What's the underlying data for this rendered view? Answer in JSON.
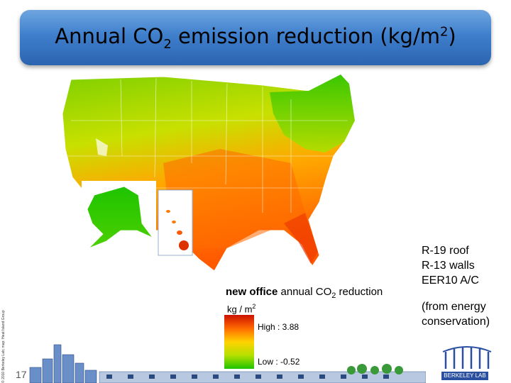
{
  "title": {
    "prefix": "Annual CO",
    "sub": "2",
    "middle": " emission reduction (kg/m",
    "sup": "2",
    "suffix": ")"
  },
  "side_notes": {
    "line1": "R-19 roof",
    "line2": "R-13 walls",
    "line3": "EER10 A/C",
    "line4": "(from energy",
    "line5": "conservation)"
  },
  "legend": {
    "title_bold": "new office",
    "title_rest": " annual CO",
    "title_sub": "2",
    "title_end": " reduction",
    "units_prefix": "kg / m",
    "units_sup": "2",
    "high": "High : 3.88",
    "low": "Low : -0.52",
    "colors": [
      "#cc1100",
      "#ff6a00",
      "#ffd200",
      "#b5e000",
      "#1ec400"
    ]
  },
  "slide_number": "17",
  "copyright": "© 2010 Berkeley Lab; map: Heat Island Group",
  "lab": {
    "name": "BERKELEY LAB"
  }
}
